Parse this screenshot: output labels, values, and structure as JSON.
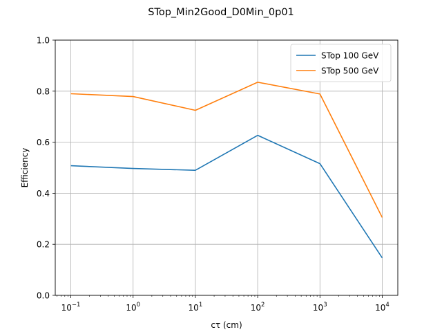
{
  "chart_data": {
    "type": "line",
    "title": "STop_Min2Good_D0Min_0p01",
    "xlabel": "cτ (cm)",
    "ylabel": "Efficiency",
    "xscale": "log",
    "x": [
      0.1,
      1,
      10,
      100,
      1000,
      10000
    ],
    "xticks": [
      {
        "base": "10",
        "exp": "−1"
      },
      {
        "base": "10",
        "exp": "0"
      },
      {
        "base": "10",
        "exp": "1"
      },
      {
        "base": "10",
        "exp": "2"
      },
      {
        "base": "10",
        "exp": "3"
      },
      {
        "base": "10",
        "exp": "4"
      }
    ],
    "ylim": [
      0,
      1
    ],
    "yticks": [
      "0.0",
      "0.2",
      "0.4",
      "0.6",
      "0.8",
      "1.0"
    ],
    "grid": true,
    "legend_position": "top-right",
    "series": [
      {
        "name": "STop 100 GeV",
        "color": "#1f77b4",
        "values": [
          0.508,
          0.497,
          0.49,
          0.627,
          0.516,
          0.147
        ]
      },
      {
        "name": "STop 500 GeV",
        "color": "#ff7f0e",
        "values": [
          0.79,
          0.779,
          0.725,
          0.835,
          0.789,
          0.305
        ]
      }
    ]
  }
}
